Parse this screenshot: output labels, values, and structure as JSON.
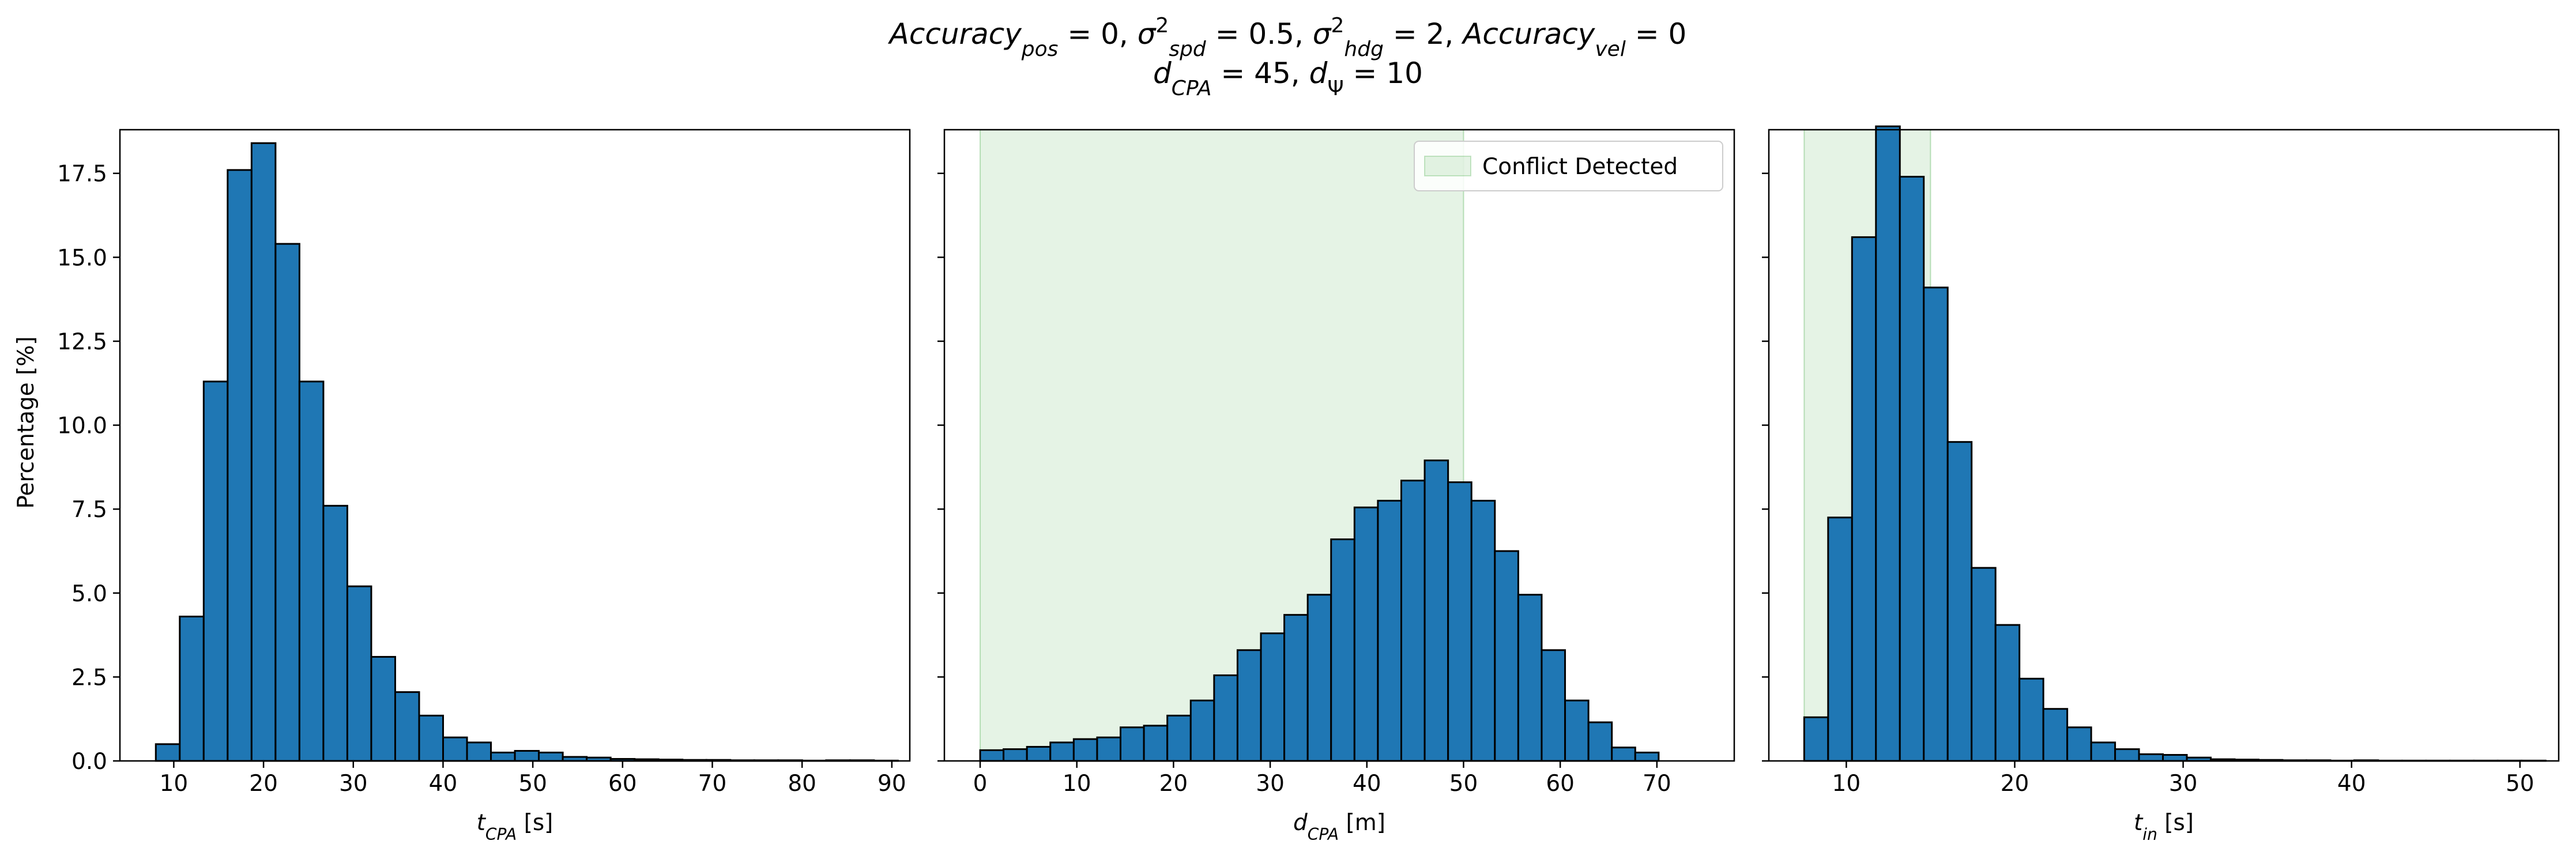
{
  "title": {
    "line1": {
      "parts": [
        {
          "t": "Accuracy",
          "i": true
        },
        {
          "t": "pos",
          "i": true,
          "sub": true
        },
        {
          "t": " = 0, "
        },
        {
          "t": "σ",
          "i": true
        },
        {
          "t": "2",
          "sup": true
        },
        {
          "t": "spd",
          "i": true,
          "sub": true
        },
        {
          "t": " = 0.5, "
        },
        {
          "t": "σ",
          "i": true
        },
        {
          "t": "2",
          "sup": true
        },
        {
          "t": "hdg",
          "i": true,
          "sub": true
        },
        {
          "t": " = 2, "
        },
        {
          "t": "Accuracy",
          "i": true
        },
        {
          "t": "vel",
          "i": true,
          "sub": true
        },
        {
          "t": " = 0"
        }
      ]
    },
    "line2": {
      "parts": [
        {
          "t": "d",
          "i": true
        },
        {
          "t": "CPA",
          "i": true,
          "sub": true
        },
        {
          "t": " = 45, "
        },
        {
          "t": "d",
          "i": true
        },
        {
          "t": "Ψ",
          "sub": true
        },
        {
          "t": " = 10"
        }
      ]
    }
  },
  "colors": {
    "bar_fill": "#1f77b4",
    "bar_edge": "#000000",
    "shade": "#2ca02c",
    "shade_opacity": 0.12
  },
  "shared_y": {
    "label": "Percentage [%]",
    "ylim": [
      0,
      18.8
    ],
    "ticks": [
      0.0,
      2.5,
      5.0,
      7.5,
      10.0,
      12.5,
      15.0,
      17.5
    ],
    "tick_labels": [
      "0.0",
      "2.5",
      "5.0",
      "7.5",
      "10.0",
      "12.5",
      "15.0",
      "17.5"
    ]
  },
  "chart_data": [
    {
      "type": "bar",
      "subtype": "histogram",
      "xlabel_parts": [
        {
          "t": "t",
          "i": true
        },
        {
          "t": "CPA",
          "i": true,
          "sub": true
        },
        {
          "t": " [s]"
        }
      ],
      "ylabel": "Percentage [%]",
      "xlim": [
        4.0,
        92.0
      ],
      "xticks": [
        10,
        20,
        30,
        40,
        50,
        60,
        70,
        80,
        90
      ],
      "xtick_labels": [
        "10",
        "20",
        "30",
        "40",
        "50",
        "60",
        "70",
        "80",
        "90"
      ],
      "bin_start": 8.0,
      "bin_width": 2.667,
      "values": [
        0.5,
        4.3,
        11.3,
        17.6,
        18.4,
        15.4,
        11.3,
        7.6,
        5.2,
        3.1,
        2.05,
        1.35,
        0.7,
        0.55,
        0.25,
        0.3,
        0.25,
        0.12,
        0.1,
        0.06,
        0.05,
        0.04,
        0.03,
        0.03,
        0.02,
        0.02,
        0.02,
        0.01,
        0.02,
        0.02,
        0.01
      ],
      "legend": null,
      "shade": null
    },
    {
      "type": "bar",
      "subtype": "histogram",
      "xlabel_parts": [
        {
          "t": "d",
          "i": true
        },
        {
          "t": "CPA",
          "i": true,
          "sub": true
        },
        {
          "t": " [m]"
        }
      ],
      "ylabel": "",
      "xlim": [
        -3.7,
        78.0
      ],
      "xticks": [
        0,
        10,
        20,
        30,
        40,
        50,
        60,
        70
      ],
      "xtick_labels": [
        "0",
        "10",
        "20",
        "30",
        "40",
        "50",
        "60",
        "70"
      ],
      "bin_start": 0.0,
      "bin_width": 2.42,
      "values": [
        0.32,
        0.35,
        0.42,
        0.55,
        0.65,
        0.7,
        1.0,
        1.05,
        1.35,
        1.8,
        2.55,
        3.3,
        3.8,
        4.35,
        4.95,
        6.6,
        7.55,
        7.75,
        8.35,
        8.95,
        8.3,
        7.75,
        6.25,
        4.95,
        3.3,
        1.8,
        1.15,
        0.4,
        0.25
      ],
      "legend": {
        "label": "Conflict Detected",
        "loc": "upper right"
      },
      "shade": [
        0,
        50
      ]
    },
    {
      "type": "bar",
      "subtype": "histogram",
      "xlabel_parts": [
        {
          "t": "t",
          "i": true
        },
        {
          "t": "in",
          "i": true,
          "sub": true
        },
        {
          "t": " [s]"
        }
      ],
      "ylabel": "",
      "xlim": [
        5.4,
        52.3
      ],
      "xticks": [
        10,
        20,
        30,
        40,
        50
      ],
      "xtick_labels": [
        "10",
        "20",
        "30",
        "40",
        "50"
      ],
      "bin_start": 7.5,
      "bin_width": 1.42,
      "values": [
        1.3,
        7.25,
        15.6,
        18.9,
        17.4,
        14.1,
        9.5,
        5.75,
        4.05,
        2.45,
        1.55,
        1.0,
        0.55,
        0.35,
        0.2,
        0.18,
        0.1,
        0.05,
        0.04,
        0.03,
        0.02,
        0.02,
        0.01,
        0.02,
        0.01,
        0.01,
        0.01,
        0.01,
        0.01,
        0.01,
        0.01
      ],
      "legend": null,
      "shade": [
        7.5,
        15
      ]
    }
  ]
}
